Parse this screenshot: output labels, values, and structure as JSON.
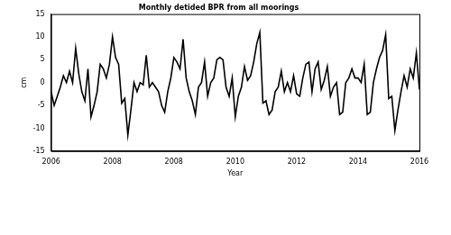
{
  "chart_data": {
    "type": "line",
    "title": "Monthly detided BPR from all moorings",
    "x_label": "Year",
    "y_label": "cm",
    "categories": [
      "2006",
      null,
      null,
      null,
      null,
      null,
      null,
      null,
      null,
      null,
      null,
      null,
      null,
      null,
      null,
      null,
      null,
      null,
      null,
      null,
      "2008",
      null,
      null,
      null,
      null,
      null,
      null,
      null,
      null,
      null,
      null,
      null,
      null,
      null,
      null,
      null,
      null,
      null,
      null,
      null,
      "2008",
      null,
      null,
      null,
      null,
      null,
      null,
      null,
      null,
      null,
      null,
      null,
      null,
      null,
      null,
      null,
      null,
      null,
      null,
      null,
      "2010",
      null,
      null,
      null,
      null,
      null,
      null,
      null,
      null,
      null,
      null,
      null,
      null,
      null,
      null,
      null,
      null,
      null,
      null,
      null,
      "2012",
      null,
      null,
      null,
      null,
      null,
      null,
      null,
      null,
      null,
      null,
      null,
      null,
      null,
      null,
      null,
      null,
      null,
      null,
      null,
      "2014",
      null,
      null,
      null,
      null,
      null,
      null,
      null,
      null,
      null,
      null,
      null,
      null,
      null,
      null,
      null,
      null,
      null,
      null,
      null,
      "2016"
    ],
    "values": [
      -2,
      -5,
      -3,
      -1,
      1.5,
      0,
      2.5,
      0,
      7.5,
      2,
      -2,
      -4,
      3,
      -7.5,
      -5,
      -2,
      4,
      3,
      1,
      4,
      10,
      5.5,
      4,
      -4.5,
      -3.5,
      -11.5,
      -6,
      0,
      -2,
      0,
      -0.5,
      6,
      -1,
      0,
      -1,
      -2,
      -5,
      -6.5,
      -2,
      1,
      5.5,
      4.5,
      3,
      9.5,
      1,
      -2,
      -4,
      -7,
      -1,
      0,
      4.5,
      -3,
      0,
      1,
      5,
      5.5,
      5,
      -1,
      -3,
      1,
      -7.5,
      -3,
      -1,
      3.5,
      0.5,
      1.5,
      4.5,
      8.5,
      11,
      -4.5,
      -4,
      -7,
      -6,
      -2,
      -1,
      2.5,
      -2,
      0,
      -2,
      1.5,
      -2.5,
      -3,
      1,
      4,
      4.5,
      -2,
      3,
      4.5,
      -1.5,
      0.5,
      3.5,
      -3,
      -1,
      0,
      -7,
      -6.5,
      0,
      1,
      3,
      1,
      1,
      0,
      4,
      -7,
      -6.5,
      0,
      3,
      5.5,
      7,
      10.5,
      -3.5,
      -3,
      -10.5,
      -6,
      -2,
      1.5,
      -1,
      3,
      1,
      6.5,
      -1.5
    ],
    "color": "#000000",
    "ylim": [
      -15,
      15
    ],
    "yticks": [
      -15,
      -10,
      -5,
      0,
      5,
      10,
      15
    ],
    "grid": false
  }
}
